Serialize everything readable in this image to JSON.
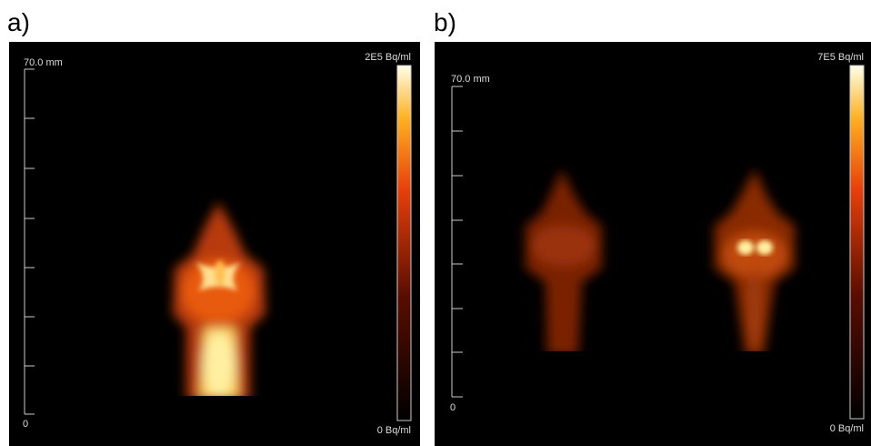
{
  "panels": [
    {
      "label": "a)",
      "scale_top": "70.0 mm",
      "scale_bottom": "0",
      "colorbar_max": "2E5 Bq/ml",
      "colorbar_min": "0 Bq/ml"
    },
    {
      "label": "b)",
      "scale_top": "70.0 mm",
      "scale_bottom": "0",
      "colorbar_max": "7E5 Bq/ml",
      "colorbar_min": "0 Bq/ml"
    }
  ]
}
